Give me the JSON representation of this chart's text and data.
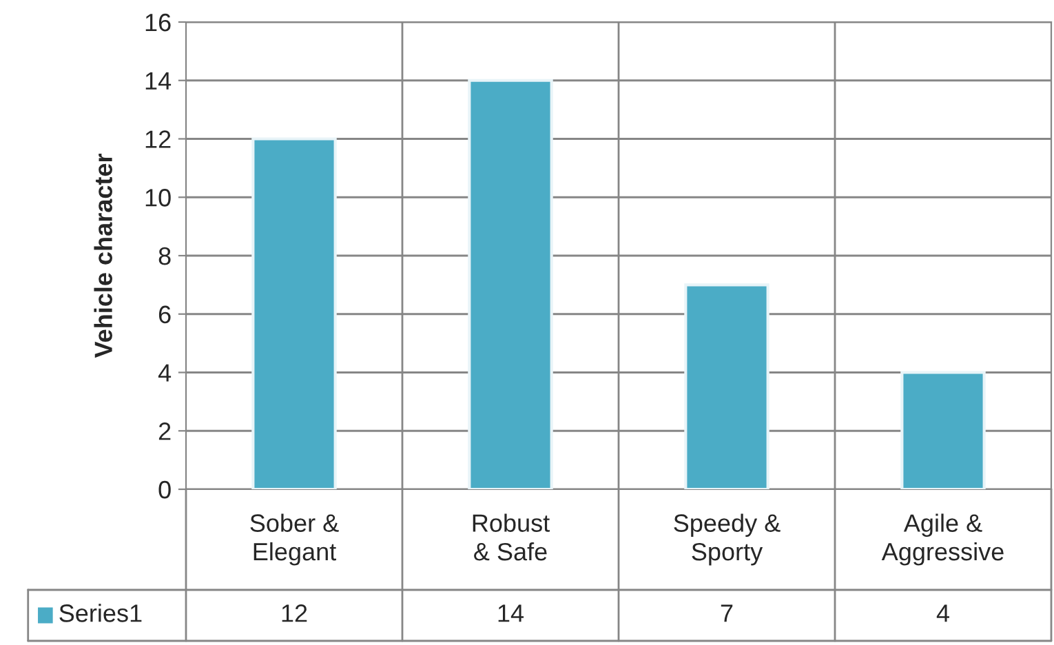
{
  "chart_data": {
    "type": "bar",
    "ylabel": "Vehicle character",
    "categories": [
      "Sober & Elegant",
      "Robust & Safe",
      "Speedy & Sporty",
      "Agile & Aggressive"
    ],
    "series": [
      {
        "name": "Series1",
        "color": "#4bacc6",
        "values": [
          12,
          14,
          7,
          4
        ]
      }
    ],
    "ylim": [
      0,
      16
    ],
    "yticks": [
      0,
      2,
      4,
      6,
      8,
      10,
      12,
      14,
      16
    ],
    "grid": true,
    "data_labels": true
  }
}
